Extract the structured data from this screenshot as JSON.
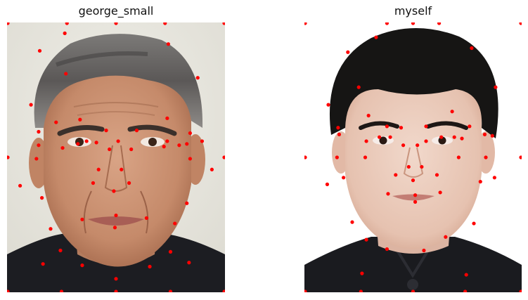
{
  "figure": {
    "panels": [
      {
        "title": "george_small",
        "image": "photo of a gray-haired man's face with landmark points",
        "point_color": "#ff0000",
        "landmarks": [
          [
            0.0,
            0.0
          ],
          [
            0.275,
            0.0
          ],
          [
            0.5,
            0.0
          ],
          [
            0.725,
            0.0
          ],
          [
            1.0,
            0.0
          ],
          [
            0.0,
            0.5
          ],
          [
            1.0,
            0.5
          ],
          [
            0.0,
            1.0
          ],
          [
            1.0,
            1.0
          ],
          [
            0.25,
            1.0
          ],
          [
            0.5,
            1.0
          ],
          [
            0.75,
            1.0
          ],
          [
            0.15,
            0.105
          ],
          [
            0.265,
            0.04
          ],
          [
            0.74,
            0.08
          ],
          [
            0.875,
            0.205
          ],
          [
            0.27,
            0.19
          ],
          [
            0.11,
            0.305
          ],
          [
            0.145,
            0.405
          ],
          [
            0.225,
            0.37
          ],
          [
            0.335,
            0.36
          ],
          [
            0.455,
            0.4
          ],
          [
            0.365,
            0.44
          ],
          [
            0.145,
            0.455
          ],
          [
            0.595,
            0.4
          ],
          [
            0.735,
            0.355
          ],
          [
            0.84,
            0.41
          ],
          [
            0.735,
            0.44
          ],
          [
            0.825,
            0.45
          ],
          [
            0.325,
            0.45
          ],
          [
            0.41,
            0.445
          ],
          [
            0.51,
            0.44
          ],
          [
            0.72,
            0.46
          ],
          [
            0.79,
            0.455
          ],
          [
            0.895,
            0.44
          ],
          [
            0.135,
            0.505
          ],
          [
            0.84,
            0.505
          ],
          [
            0.255,
            0.465
          ],
          [
            0.47,
            0.47
          ],
          [
            0.57,
            0.47
          ],
          [
            0.42,
            0.545
          ],
          [
            0.525,
            0.545
          ],
          [
            0.395,
            0.595
          ],
          [
            0.56,
            0.595
          ],
          [
            0.49,
            0.625
          ],
          [
            0.16,
            0.65
          ],
          [
            0.825,
            0.67
          ],
          [
            0.345,
            0.73
          ],
          [
            0.5,
            0.715
          ],
          [
            0.64,
            0.725
          ],
          [
            0.495,
            0.76
          ],
          [
            0.2,
            0.765
          ],
          [
            0.77,
            0.745
          ],
          [
            0.245,
            0.845
          ],
          [
            0.75,
            0.85
          ],
          [
            0.345,
            0.9
          ],
          [
            0.655,
            0.905
          ],
          [
            0.5,
            0.95
          ],
          [
            0.165,
            0.895
          ],
          [
            0.835,
            0.89
          ],
          [
            0.06,
            0.605
          ],
          [
            0.94,
            0.545
          ]
        ]
      },
      {
        "title": "myself",
        "image": "photo of a young man with black hair in a dark shirt with landmark points",
        "point_color": "#ff0000",
        "landmarks": [
          [
            0.0,
            0.0
          ],
          [
            0.38,
            0.0
          ],
          [
            0.5,
            0.0
          ],
          [
            0.62,
            0.0
          ],
          [
            1.0,
            0.0
          ],
          [
            0.0,
            0.5
          ],
          [
            1.0,
            0.5
          ],
          [
            0.0,
            1.0
          ],
          [
            1.0,
            1.0
          ],
          [
            0.26,
            1.0
          ],
          [
            0.5,
            1.0
          ],
          [
            0.74,
            1.0
          ],
          [
            0.33,
            0.055
          ],
          [
            0.2,
            0.11
          ],
          [
            0.77,
            0.095
          ],
          [
            0.88,
            0.24
          ],
          [
            0.25,
            0.24
          ],
          [
            0.11,
            0.305
          ],
          [
            0.155,
            0.39
          ],
          [
            0.295,
            0.345
          ],
          [
            0.38,
            0.385
          ],
          [
            0.445,
            0.39
          ],
          [
            0.56,
            0.385
          ],
          [
            0.68,
            0.33
          ],
          [
            0.76,
            0.385
          ],
          [
            0.16,
            0.415
          ],
          [
            0.285,
            0.44
          ],
          [
            0.345,
            0.425
          ],
          [
            0.395,
            0.425
          ],
          [
            0.56,
            0.44
          ],
          [
            0.63,
            0.425
          ],
          [
            0.69,
            0.425
          ],
          [
            0.725,
            0.43
          ],
          [
            0.83,
            0.415
          ],
          [
            0.865,
            0.42
          ],
          [
            0.15,
            0.5
          ],
          [
            0.835,
            0.5
          ],
          [
            0.455,
            0.455
          ],
          [
            0.52,
            0.455
          ],
          [
            0.28,
            0.5
          ],
          [
            0.71,
            0.5
          ],
          [
            0.48,
            0.535
          ],
          [
            0.54,
            0.535
          ],
          [
            0.42,
            0.565
          ],
          [
            0.61,
            0.565
          ],
          [
            0.5,
            0.585
          ],
          [
            0.18,
            0.575
          ],
          [
            0.81,
            0.59
          ],
          [
            0.385,
            0.635
          ],
          [
            0.51,
            0.64
          ],
          [
            0.625,
            0.63
          ],
          [
            0.51,
            0.665
          ],
          [
            0.22,
            0.74
          ],
          [
            0.78,
            0.745
          ],
          [
            0.285,
            0.805
          ],
          [
            0.65,
            0.795
          ],
          [
            0.38,
            0.84
          ],
          [
            0.55,
            0.845
          ],
          [
            0.265,
            0.93
          ],
          [
            0.745,
            0.935
          ],
          [
            0.105,
            0.6
          ],
          [
            0.875,
            0.575
          ]
        ]
      }
    ]
  }
}
